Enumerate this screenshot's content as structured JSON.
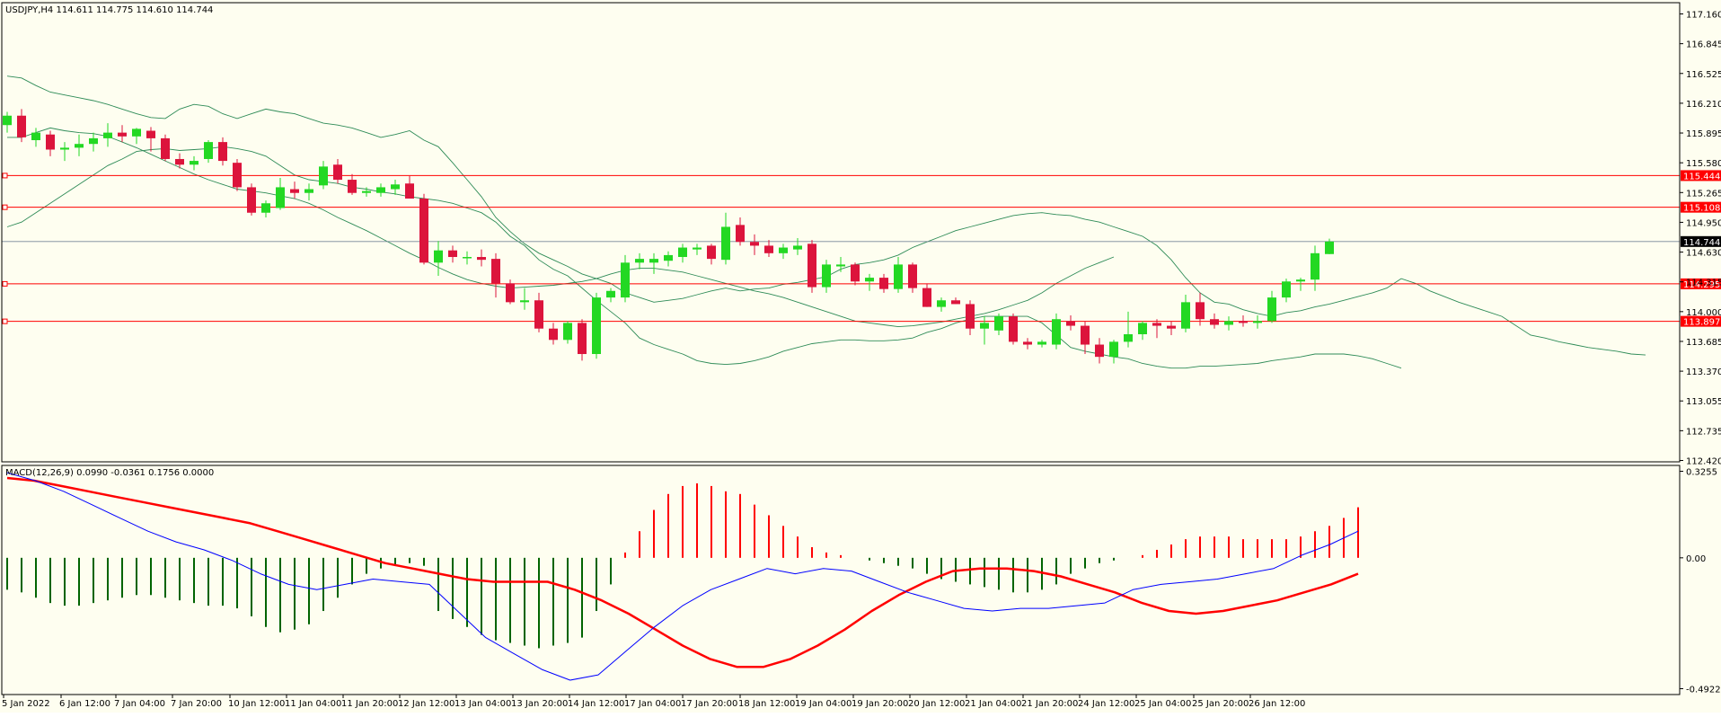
{
  "colors": {
    "background": "#fefef0",
    "frame": "#000000",
    "bull": "#23d823",
    "bear": "#dc143c",
    "bands": "#2e8b57",
    "price_line": "#778899",
    "hline": "#ff0000",
    "macd_signal": "#ff0000",
    "macd_main": "#0000ff",
    "hist_pos": "#ff0000",
    "hist_neg": "#006400",
    "label_text": "#ffffff",
    "current_label_bg": "#000000"
  },
  "main_chart": {
    "info": "USDJPY,H4  114.611 114.775 114.610 114.744",
    "y_ticks": [
      "117.160",
      "116.845",
      "116.525",
      "116.210",
      "115.895",
      "115.580",
      "115.265",
      "114.950",
      "114.630",
      "114.315",
      "114.000",
      "113.685",
      "113.370",
      "113.055",
      "112.735",
      "112.420"
    ],
    "h_levels": [
      {
        "label": "115.444",
        "value": 115.444
      },
      {
        "label": "115.108",
        "value": 115.108
      },
      {
        "label": "114.295",
        "value": 114.295
      },
      {
        "label": "113.897",
        "value": 113.897
      }
    ],
    "current_price": {
      "label": "114.744",
      "value": 114.744
    }
  },
  "macd_panel": {
    "info": "MACD(12,26,9) 0.0990 -0.0361 0.1756 0.0000",
    "y_ticks": [
      "0.3255",
      "0.00",
      "-0.4922"
    ]
  },
  "x_labels": [
    "5 Jan 2022",
    "6 Jan 12:00",
    "7 Jan 04:00",
    "7 Jan 20:00",
    "10 Jan 12:00",
    "11 Jan 04:00",
    "11 Jan 20:00",
    "12 Jan 12:00",
    "13 Jan 04:00",
    "13 Jan 20:00",
    "14 Jan 12:00",
    "17 Jan 04:00",
    "17 Jan 20:00",
    "18 Jan 12:00",
    "19 Jan 04:00",
    "19 Jan 20:00",
    "20 Jan 12:00",
    "21 Jan 04:00",
    "21 Jan 20:00",
    "24 Jan 12:00",
    "25 Jan 04:00",
    "25 Jan 20:00",
    "26 Jan 12:00"
  ],
  "chart_data": {
    "type": "candlestick",
    "title": "USDJPY,H4",
    "ylim": [
      112.42,
      117.16
    ],
    "candles": [
      [
        115.98,
        116.12,
        115.9,
        116.08
      ],
      [
        116.08,
        116.15,
        115.8,
        115.85
      ],
      [
        115.82,
        115.95,
        115.75,
        115.9
      ],
      [
        115.88,
        115.92,
        115.65,
        115.72
      ],
      [
        115.72,
        115.8,
        115.6,
        115.74
      ],
      [
        115.74,
        115.88,
        115.65,
        115.78
      ],
      [
        115.78,
        115.9,
        115.7,
        115.84
      ],
      [
        115.84,
        116.0,
        115.75,
        115.9
      ],
      [
        115.9,
        115.98,
        115.8,
        115.86
      ],
      [
        115.86,
        115.95,
        115.78,
        115.94
      ],
      [
        115.92,
        115.96,
        115.7,
        115.84
      ],
      [
        115.84,
        115.88,
        115.6,
        115.62
      ],
      [
        115.62,
        115.68,
        115.52,
        115.56
      ],
      [
        115.56,
        115.65,
        115.5,
        115.6
      ],
      [
        115.62,
        115.82,
        115.58,
        115.8
      ],
      [
        115.8,
        115.85,
        115.55,
        115.6
      ],
      [
        115.58,
        115.62,
        115.28,
        115.32
      ],
      [
        115.32,
        115.36,
        115.02,
        115.05
      ],
      [
        115.05,
        115.18,
        115.0,
        115.15
      ],
      [
        115.1,
        115.42,
        115.08,
        115.32
      ],
      [
        115.3,
        115.38,
        115.2,
        115.26
      ],
      [
        115.26,
        115.36,
        115.18,
        115.3
      ],
      [
        115.34,
        115.6,
        115.3,
        115.54
      ],
      [
        115.56,
        115.62,
        115.36,
        115.4
      ],
      [
        115.4,
        115.46,
        115.24,
        115.26
      ],
      [
        115.26,
        115.32,
        115.22,
        115.28
      ],
      [
        115.26,
        115.36,
        115.22,
        115.32
      ],
      [
        115.3,
        115.4,
        115.24,
        115.35
      ],
      [
        115.36,
        115.44,
        115.22,
        115.2
      ],
      [
        115.2,
        115.25,
        114.5,
        114.52
      ],
      [
        114.52,
        114.75,
        114.38,
        114.65
      ],
      [
        114.65,
        114.7,
        114.52,
        114.58
      ],
      [
        114.58,
        114.64,
        114.5,
        114.58
      ],
      [
        114.58,
        114.66,
        114.48,
        114.55
      ],
      [
        114.56,
        114.62,
        114.15,
        114.3
      ],
      [
        114.3,
        114.34,
        114.08,
        114.1
      ],
      [
        114.1,
        114.25,
        114.02,
        114.12
      ],
      [
        114.12,
        114.2,
        113.78,
        113.82
      ],
      [
        113.82,
        113.88,
        113.65,
        113.7
      ],
      [
        113.7,
        113.9,
        113.66,
        113.88
      ],
      [
        113.88,
        113.92,
        113.48,
        113.55
      ],
      [
        113.55,
        114.2,
        113.5,
        114.15
      ],
      [
        114.15,
        114.25,
        114.1,
        114.22
      ],
      [
        114.15,
        114.6,
        114.1,
        114.52
      ],
      [
        114.52,
        114.62,
        114.45,
        114.56
      ],
      [
        114.52,
        114.62,
        114.4,
        114.56
      ],
      [
        114.54,
        114.64,
        114.48,
        114.6
      ],
      [
        114.58,
        114.72,
        114.52,
        114.68
      ],
      [
        114.66,
        114.72,
        114.6,
        114.68
      ],
      [
        114.7,
        114.72,
        114.5,
        114.56
      ],
      [
        114.55,
        115.05,
        114.5,
        114.9
      ],
      [
        114.92,
        115.0,
        114.7,
        114.74
      ],
      [
        114.74,
        114.82,
        114.6,
        114.7
      ],
      [
        114.7,
        114.76,
        114.58,
        114.62
      ],
      [
        114.62,
        114.72,
        114.56,
        114.68
      ],
      [
        114.66,
        114.78,
        114.6,
        114.7
      ],
      [
        114.72,
        114.76,
        114.2,
        114.26
      ],
      [
        114.26,
        114.55,
        114.2,
        114.5
      ],
      [
        114.48,
        114.58,
        114.42,
        114.5
      ],
      [
        114.5,
        114.52,
        114.28,
        114.32
      ],
      [
        114.32,
        114.4,
        114.22,
        114.36
      ],
      [
        114.36,
        114.4,
        114.2,
        114.24
      ],
      [
        114.24,
        114.58,
        114.2,
        114.5
      ],
      [
        114.5,
        114.52,
        114.2,
        114.25
      ],
      [
        114.25,
        114.3,
        114.05,
        114.05
      ],
      [
        114.05,
        114.15,
        114.0,
        114.12
      ],
      [
        114.12,
        114.15,
        114.08,
        114.08
      ],
      [
        114.08,
        114.12,
        113.75,
        113.82
      ],
      [
        113.82,
        113.95,
        113.65,
        113.88
      ],
      [
        113.8,
        113.98,
        113.75,
        113.95
      ],
      [
        113.95,
        113.98,
        113.65,
        113.68
      ],
      [
        113.68,
        113.72,
        113.6,
        113.65
      ],
      [
        113.65,
        113.7,
        113.62,
        113.68
      ],
      [
        113.65,
        113.98,
        113.6,
        113.92
      ],
      [
        113.9,
        113.96,
        113.8,
        113.85
      ],
      [
        113.85,
        113.9,
        113.55,
        113.65
      ],
      [
        113.65,
        113.72,
        113.45,
        113.52
      ],
      [
        113.52,
        113.7,
        113.45,
        113.68
      ],
      [
        113.68,
        114.0,
        113.62,
        113.76
      ],
      [
        113.76,
        113.9,
        113.7,
        113.88
      ],
      [
        113.88,
        113.92,
        113.72,
        113.85
      ],
      [
        113.85,
        113.9,
        113.75,
        113.82
      ],
      [
        113.82,
        114.18,
        113.78,
        114.1
      ],
      [
        114.1,
        114.2,
        113.85,
        113.92
      ],
      [
        113.92,
        113.98,
        113.82,
        113.86
      ],
      [
        113.86,
        113.95,
        113.8,
        113.9
      ],
      [
        113.9,
        113.96,
        113.84,
        113.88
      ],
      [
        113.88,
        113.96,
        113.82,
        113.9
      ],
      [
        113.9,
        114.22,
        113.88,
        114.15
      ],
      [
        114.15,
        114.35,
        114.1,
        114.32
      ],
      [
        114.32,
        114.36,
        114.22,
        114.34
      ],
      [
        114.34,
        114.7,
        114.22,
        114.62
      ],
      [
        114.611,
        114.775,
        114.61,
        114.744
      ]
    ],
    "bb_upper": [
      116.5,
      116.48,
      116.4,
      116.33,
      116.3,
      116.27,
      116.24,
      116.2,
      116.15,
      116.1,
      116.06,
      116.05,
      116.15,
      116.2,
      116.18,
      116.1,
      116.05,
      116.1,
      116.15,
      116.12,
      116.1,
      116.05,
      116.0,
      115.98,
      115.95,
      115.9,
      115.85,
      115.88,
      115.92,
      115.82,
      115.75,
      115.58,
      115.4,
      115.22,
      115.0,
      114.85,
      114.72,
      114.62,
      114.55,
      114.48,
      114.4,
      114.35,
      114.3,
      114.2,
      114.15,
      114.1,
      114.12,
      114.14,
      114.18,
      114.22,
      114.25,
      114.22,
      114.24,
      114.25,
      114.29,
      114.31,
      114.34,
      114.37,
      114.45,
      114.5,
      114.52,
      114.55,
      114.6,
      114.68,
      114.74,
      114.8,
      114.86,
      114.9,
      114.94,
      114.98,
      115.02,
      115.04,
      115.05,
      115.03,
      115.02,
      114.98,
      114.95,
      114.9,
      114.85,
      114.8,
      114.7,
      114.55,
      114.36,
      114.2,
      114.1,
      114.08,
      114.02,
      113.98,
      113.95,
      113.99,
      114.01,
      114.05,
      114.08,
      114.12,
      114.16,
      114.2,
      114.25,
      114.35,
      114.3,
      114.22,
      114.16,
      114.1,
      114.05,
      114.0,
      113.95,
      113.85,
      113.75,
      113.72,
      113.68,
      113.65,
      113.62,
      113.6,
      113.58,
      113.55,
      113.54
    ],
    "bb_middle": [
      115.85,
      115.85,
      115.9,
      115.95,
      115.92,
      115.9,
      115.89,
      115.86,
      115.8,
      115.74,
      115.67,
      115.6,
      115.53,
      115.46,
      115.4,
      115.35,
      115.3,
      115.28,
      115.26,
      115.23,
      115.2,
      115.15,
      115.08,
      115.0,
      114.93,
      114.86,
      114.78,
      114.7,
      114.62,
      114.55,
      114.47,
      114.4,
      114.34,
      114.3,
      114.27,
      114.25,
      114.26,
      114.27,
      114.28,
      114.3,
      114.32,
      114.35,
      114.4,
      114.44,
      114.46,
      114.46,
      114.44,
      114.42,
      114.38,
      114.34,
      114.3,
      114.26,
      114.22,
      114.19,
      114.15,
      114.1,
      114.05,
      114.0,
      113.95,
      113.9,
      113.88,
      113.86,
      113.84,
      113.85,
      113.87,
      113.89,
      113.92,
      113.95,
      113.98,
      114.02,
      114.07,
      114.12,
      114.2,
      114.3,
      114.38,
      114.46,
      114.52,
      114.58
    ],
    "bb_lower": [
      114.9,
      114.95,
      115.05,
      115.15,
      115.25,
      115.35,
      115.45,
      115.55,
      115.62,
      115.7,
      115.72,
      115.73,
      115.71,
      115.72,
      115.73,
      115.75,
      115.73,
      115.7,
      115.65,
      115.55,
      115.45,
      115.4,
      115.38,
      115.36,
      115.32,
      115.3,
      115.27,
      115.25,
      115.22,
      115.2,
      115.18,
      115.15,
      115.1,
      115.05,
      114.95,
      114.8,
      114.7,
      114.55,
      114.45,
      114.38,
      114.25,
      114.12,
      114.0,
      113.88,
      113.72,
      113.65,
      113.6,
      113.55,
      113.48,
      113.45,
      113.44,
      113.45,
      113.48,
      113.52,
      113.58,
      113.62,
      113.66,
      113.68,
      113.7,
      113.7,
      113.69,
      113.69,
      113.7,
      113.72,
      113.78,
      113.82,
      113.88,
      113.92,
      113.95,
      113.95,
      113.95,
      113.95,
      113.88,
      113.75,
      113.62,
      113.58,
      113.55,
      113.52,
      113.5,
      113.45,
      113.42,
      113.4,
      113.4,
      113.42,
      113.42,
      113.43,
      113.44,
      113.45,
      113.48,
      113.5,
      113.52,
      113.55,
      113.55,
      113.55,
      113.53,
      113.5,
      113.45,
      113.4
    ],
    "macd_histogram": [
      -0.12,
      -0.13,
      -0.15,
      -0.17,
      -0.18,
      -0.18,
      -0.17,
      -0.16,
      -0.15,
      -0.14,
      -0.14,
      -0.15,
      -0.16,
      -0.17,
      -0.18,
      -0.18,
      -0.19,
      -0.22,
      -0.26,
      -0.28,
      -0.27,
      -0.25,
      -0.2,
      -0.15,
      -0.1,
      -0.06,
      -0.04,
      -0.03,
      -0.02,
      -0.03,
      -0.2,
      -0.23,
      -0.26,
      -0.29,
      -0.31,
      -0.32,
      -0.33,
      -0.34,
      -0.33,
      -0.32,
      -0.3,
      -0.2,
      -0.1,
      0.02,
      0.1,
      0.18,
      0.24,
      0.27,
      0.28,
      0.27,
      0.25,
      0.24,
      0.2,
      0.16,
      0.12,
      0.08,
      0.04,
      0.02,
      0.01,
      0.0,
      -0.01,
      -0.02,
      -0.03,
      -0.04,
      -0.06,
      -0.08,
      -0.09,
      -0.1,
      -0.11,
      -0.12,
      -0.13,
      -0.13,
      -0.12,
      -0.1,
      -0.06,
      -0.04,
      -0.02,
      -0.01,
      0.0,
      0.01,
      0.03,
      0.05,
      0.07,
      0.08,
      0.08,
      0.08,
      0.07,
      0.07,
      0.07,
      0.07,
      0.08,
      0.1,
      0.12,
      0.15,
      0.19
    ],
    "macd_signal": [
      0.3,
      0.29,
      0.27,
      0.25,
      0.23,
      0.21,
      0.19,
      0.17,
      0.15,
      0.13,
      0.1,
      0.07,
      0.04,
      0.01,
      -0.02,
      -0.04,
      -0.06,
      -0.08,
      -0.09,
      -0.09,
      -0.09,
      -0.12,
      -0.16,
      -0.21,
      -0.27,
      -0.33,
      -0.38,
      -0.41,
      -0.41,
      -0.38,
      -0.33,
      -0.27,
      -0.2,
      -0.14,
      -0.09,
      -0.05,
      -0.04,
      -0.04,
      -0.05,
      -0.07,
      -0.1,
      -0.13,
      -0.17,
      -0.2,
      -0.21,
      -0.2,
      -0.18,
      -0.16,
      -0.13,
      -0.1,
      -0.06
    ],
    "macd_main": [
      0.32,
      0.29,
      0.25,
      0.2,
      0.15,
      0.1,
      0.06,
      0.03,
      -0.01,
      -0.06,
      -0.1,
      -0.12,
      -0.1,
      -0.08,
      -0.09,
      -0.1,
      -0.2,
      -0.3,
      -0.36,
      -0.42,
      -0.46,
      -0.44,
      -0.35,
      -0.26,
      -0.18,
      -0.12,
      -0.08,
      -0.04,
      -0.06,
      -0.04,
      -0.05,
      -0.09,
      -0.13,
      -0.16,
      -0.19,
      -0.2,
      -0.19,
      -0.19,
      -0.18,
      -0.17,
      -0.12,
      -0.1,
      -0.09,
      -0.08,
      -0.06,
      -0.04,
      0.01,
      0.05,
      0.1
    ]
  }
}
